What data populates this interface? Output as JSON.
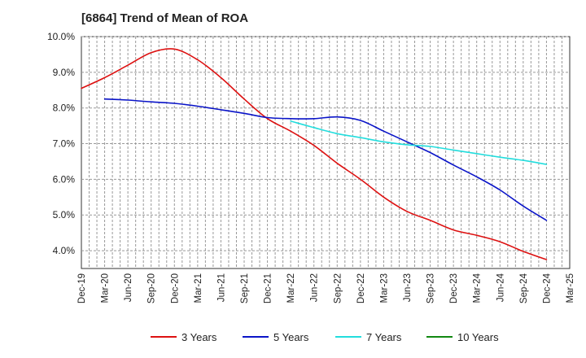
{
  "chart_data": {
    "type": "line",
    "title": "[6864]  Trend of Mean of ROA",
    "xlabel": "",
    "ylabel": "",
    "ylim": [
      3.5,
      10.0
    ],
    "yticks": [
      "4.0%",
      "5.0%",
      "6.0%",
      "7.0%",
      "8.0%",
      "9.0%",
      "10.0%"
    ],
    "ytick_values": [
      4,
      5,
      6,
      7,
      8,
      9,
      10
    ],
    "categories": [
      "Dec-19",
      "Mar-20",
      "Jun-20",
      "Sep-20",
      "Dec-20",
      "Mar-21",
      "Jun-21",
      "Sep-21",
      "Dec-21",
      "Mar-22",
      "Jun-22",
      "Sep-22",
      "Dec-22",
      "Mar-23",
      "Jun-23",
      "Sep-23",
      "Dec-23",
      "Mar-24",
      "Jun-24",
      "Sep-24",
      "Dec-24",
      "Mar-25"
    ],
    "grid": true,
    "legend_position": "bottom",
    "series": [
      {
        "name": "3 Years",
        "color": "#dd1111",
        "values": [
          8.55,
          8.85,
          9.2,
          9.55,
          9.65,
          9.35,
          8.85,
          8.25,
          7.7,
          7.35,
          6.95,
          6.45,
          6.0,
          5.5,
          5.1,
          4.85,
          4.58,
          4.43,
          4.25,
          3.98,
          3.75,
          null
        ]
      },
      {
        "name": "5 Years",
        "color": "#0a14c8",
        "values": [
          null,
          8.25,
          8.22,
          8.17,
          8.13,
          8.05,
          7.95,
          7.85,
          7.73,
          7.7,
          7.7,
          7.75,
          7.65,
          7.35,
          7.05,
          6.75,
          6.4,
          6.07,
          5.7,
          5.25,
          4.85,
          null
        ]
      },
      {
        "name": "7 Years",
        "color": "#22dddd",
        "values": [
          null,
          null,
          null,
          null,
          null,
          null,
          null,
          null,
          null,
          7.63,
          7.45,
          7.28,
          7.17,
          7.05,
          6.97,
          6.92,
          6.82,
          6.72,
          6.62,
          6.53,
          6.42,
          null
        ]
      },
      {
        "name": "10 Years",
        "color": "#118811",
        "values": [
          null,
          null,
          null,
          null,
          null,
          null,
          null,
          null,
          null,
          null,
          null,
          null,
          null,
          null,
          null,
          null,
          null,
          null,
          null,
          null,
          null,
          null
        ]
      }
    ]
  }
}
